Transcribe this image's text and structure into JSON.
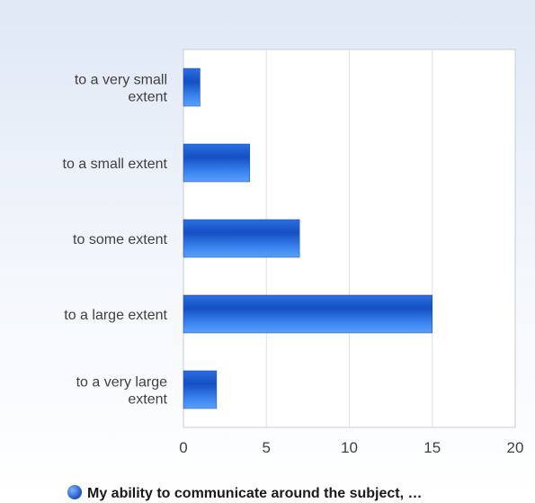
{
  "chart_data": {
    "type": "bar",
    "orientation": "horizontal",
    "categories": [
      [
        "to a very small",
        "extent"
      ],
      [
        "to a small extent"
      ],
      [
        "to some extent"
      ],
      [
        "to a large extent"
      ],
      [
        "to a very large",
        "extent"
      ]
    ],
    "series": [
      {
        "name": "My ability to communicate around the subject, …",
        "values": [
          1,
          4,
          7,
          15,
          2
        ],
        "color": "#1f5fd6"
      }
    ],
    "xlim": [
      0,
      20
    ],
    "xticks": [
      0,
      5,
      10,
      15,
      20
    ],
    "grid": true,
    "legend_position": "bottom-center"
  }
}
